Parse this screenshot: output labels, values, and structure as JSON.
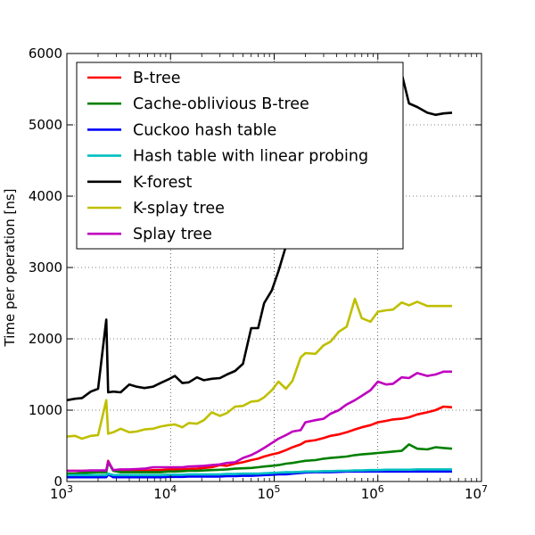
{
  "chart_data": {
    "type": "line",
    "title": "",
    "xlabel": "",
    "ylabel": "Time per operation [ns]",
    "xscale": "log",
    "xlim": [
      1000,
      10000000
    ],
    "ylim": [
      0,
      6000
    ],
    "grid": true,
    "legend_position": "top-left",
    "x_ticks": [
      {
        "value": 1000,
        "base": "10",
        "exp": "3"
      },
      {
        "value": 10000,
        "base": "10",
        "exp": "4"
      },
      {
        "value": 100000,
        "base": "10",
        "exp": "5"
      },
      {
        "value": 1000000,
        "base": "10",
        "exp": "6"
      },
      {
        "value": 10000000,
        "base": "10",
        "exp": "7"
      }
    ],
    "y_ticks": [
      {
        "value": 0,
        "label": "0"
      },
      {
        "value": 1000,
        "label": "1000"
      },
      {
        "value": 2000,
        "label": "2000"
      },
      {
        "value": 3000,
        "label": "3000"
      },
      {
        "value": 4000,
        "label": "4000"
      },
      {
        "value": 5000,
        "label": "5000"
      },
      {
        "value": 6000,
        "label": "6000"
      }
    ],
    "x": [
      1000,
      1200,
      1400,
      1700,
      2000,
      2400,
      2500,
      2800,
      3300,
      4000,
      4700,
      5600,
      6800,
      8000,
      9500,
      11000,
      13000,
      15000,
      18000,
      21000,
      25000,
      30000,
      35000,
      42000,
      50000,
      60000,
      70000,
      80000,
      95000,
      110000,
      130000,
      150000,
      180000,
      200000,
      250000,
      300000,
      350000,
      420000,
      500000,
      600000,
      700000,
      850000,
      1000000,
      1200000,
      1400000,
      1700000,
      2000000,
      2400000,
      3000000,
      3600000,
      4300000,
      5200000
    ],
    "series": [
      {
        "name": "B-tree",
        "color": "#ff0000",
        "values": [
          150,
          150,
          150,
          150,
          150,
          150,
          290,
          150,
          150,
          150,
          150,
          150,
          160,
          160,
          170,
          170,
          170,
          175,
          180,
          190,
          200,
          230,
          220,
          250,
          270,
          300,
          320,
          350,
          380,
          400,
          440,
          480,
          520,
          560,
          580,
          610,
          640,
          660,
          690,
          730,
          760,
          790,
          830,
          850,
          870,
          880,
          900,
          940,
          970,
          1000,
          1050,
          1040
        ]
      },
      {
        "name": "Cache-oblivious B-tree",
        "color": "#008000",
        "values": [
          110,
          110,
          120,
          125,
          130,
          130,
          270,
          150,
          130,
          130,
          130,
          130,
          130,
          130,
          140,
          140,
          145,
          150,
          150,
          155,
          160,
          165,
          170,
          180,
          185,
          190,
          200,
          210,
          220,
          230,
          250,
          260,
          280,
          290,
          300,
          320,
          330,
          340,
          350,
          370,
          380,
          390,
          400,
          410,
          420,
          430,
          520,
          460,
          450,
          480,
          470,
          460
        ]
      },
      {
        "name": "Cuckoo hash table",
        "color": "#0000ff",
        "values": [
          60,
          60,
          60,
          60,
          60,
          60,
          100,
          60,
          60,
          60,
          60,
          60,
          60,
          60,
          65,
          65,
          65,
          70,
          70,
          70,
          70,
          70,
          75,
          75,
          80,
          80,
          85,
          90,
          95,
          100,
          100,
          110,
          120,
          125,
          130,
          130,
          130,
          135,
          140,
          140,
          140,
          140,
          140,
          140,
          140,
          140,
          140,
          140,
          140,
          140,
          140,
          140
        ]
      },
      {
        "name": "Hash table with linear probing",
        "color": "#00bfbf",
        "values": [
          90,
          90,
          90,
          90,
          90,
          90,
          110,
          90,
          90,
          90,
          90,
          90,
          90,
          90,
          95,
          95,
          95,
          100,
          100,
          100,
          100,
          100,
          105,
          105,
          110,
          110,
          110,
          115,
          120,
          125,
          130,
          130,
          135,
          140,
          140,
          145,
          145,
          150,
          150,
          155,
          155,
          160,
          160,
          165,
          165,
          165,
          165,
          170,
          170,
          170,
          170,
          170
        ]
      },
      {
        "name": "K-forest",
        "color": "#000000",
        "values": [
          1140,
          1160,
          1170,
          1260,
          1300,
          2270,
          1250,
          1260,
          1250,
          1360,
          1330,
          1310,
          1330,
          1380,
          1430,
          1480,
          1380,
          1390,
          1460,
          1420,
          1440,
          1450,
          1500,
          1550,
          1650,
          2150,
          2150,
          2500,
          2680,
          2950,
          3300,
          3700,
          3900,
          4200,
          4500,
          4700,
          4900,
          5000,
          5100,
          5200,
          5300,
          5250,
          5200,
          5150,
          5100,
          5720,
          5300,
          5250,
          5170,
          5140,
          5160,
          5170
        ]
      },
      {
        "name": "K-splay tree",
        "color": "#bfbf00",
        "values": [
          630,
          640,
          600,
          640,
          650,
          1140,
          670,
          690,
          740,
          690,
          700,
          730,
          740,
          770,
          790,
          800,
          760,
          820,
          810,
          860,
          970,
          920,
          960,
          1050,
          1060,
          1120,
          1130,
          1180,
          1280,
          1400,
          1300,
          1410,
          1740,
          1800,
          1790,
          1910,
          1960,
          2100,
          2170,
          2560,
          2290,
          2240,
          2380,
          2400,
          2410,
          2510,
          2470,
          2520,
          2460,
          2460,
          2460,
          2460
        ]
      },
      {
        "name": "Splay tree",
        "color": "#bf00bf",
        "values": [
          150,
          150,
          150,
          155,
          155,
          155,
          280,
          160,
          170,
          170,
          175,
          180,
          200,
          200,
          200,
          200,
          200,
          210,
          215,
          220,
          230,
          240,
          260,
          270,
          330,
          370,
          420,
          470,
          540,
          600,
          650,
          700,
          720,
          830,
          860,
          880,
          950,
          1000,
          1080,
          1140,
          1200,
          1280,
          1400,
          1360,
          1370,
          1460,
          1450,
          1520,
          1480,
          1500,
          1540,
          1540
        ]
      }
    ]
  }
}
